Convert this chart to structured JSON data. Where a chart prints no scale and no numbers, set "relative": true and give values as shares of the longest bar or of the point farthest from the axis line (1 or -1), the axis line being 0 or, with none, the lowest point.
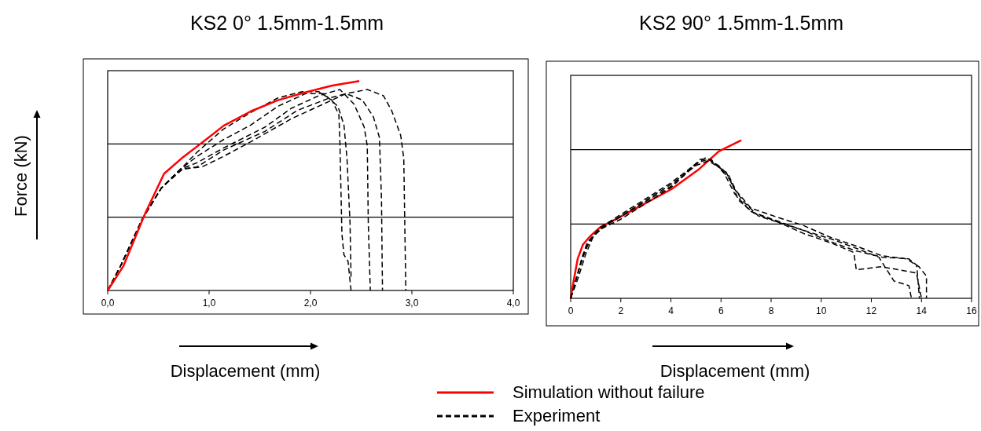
{
  "chart_data": [
    {
      "type": "line",
      "title": "KS2 0° 1.5mm-1.5mm",
      "xlabel": "Displacement (mm)",
      "ylabel": "Force (kN)",
      "relative": true,
      "legend": false,
      "line_style": "dashed",
      "ref_lines": [
        {
          "axis": "y",
          "value": 0.35
        },
        {
          "axis": "y",
          "value": 0.7
        }
      ],
      "xlim": [
        0,
        4
      ],
      "xticks": [
        {
          "value": 0,
          "label": "0,0"
        },
        {
          "value": 1,
          "label": "1,0"
        },
        {
          "value": 2,
          "label": "2,0"
        },
        {
          "value": 3,
          "label": "3,0"
        },
        {
          "value": 4,
          "label": "4,0"
        }
      ],
      "series": [
        {
          "color": "#000000",
          "x": [
            0,
            0.13,
            0.34,
            0.53,
            0.72,
            0.88,
            1.14,
            1.41,
            1.68,
            1.92,
            2.08,
            2.21,
            2.28,
            2.29,
            2.31,
            2.33,
            2.37,
            2.4
          ],
          "values": [
            0,
            0.12,
            0.34,
            0.49,
            0.58,
            0.66,
            0.77,
            0.85,
            0.92,
            0.95,
            0.95,
            0.91,
            0.84,
            0.71,
            0.27,
            0.17,
            0.14,
            0
          ]
        },
        {
          "color": "#000000",
          "x": [
            0,
            0.13,
            0.34,
            0.53,
            0.72,
            0.88,
            1.14,
            1.41,
            1.68,
            1.95,
            2.13,
            2.27,
            2.33,
            2.36,
            2.39,
            2.4
          ],
          "values": [
            0,
            0.12,
            0.34,
            0.49,
            0.58,
            0.64,
            0.72,
            0.79,
            0.88,
            0.94,
            0.94,
            0.88,
            0.79,
            0.63,
            0.32,
            0.06
          ]
        },
        {
          "color": "#000000",
          "x": [
            0,
            0.13,
            0.34,
            0.53,
            0.72,
            0.88,
            1.14,
            1.55,
            1.81,
            2.08,
            2.29,
            2.43,
            2.53,
            2.56,
            2.57,
            2.59
          ],
          "values": [
            0,
            0.12,
            0.34,
            0.49,
            0.58,
            0.61,
            0.68,
            0.78,
            0.87,
            0.93,
            0.96,
            0.89,
            0.78,
            0.69,
            0.32,
            0
          ]
        },
        {
          "color": "#000000",
          "x": [
            0,
            0.13,
            0.34,
            0.53,
            0.72,
            0.88,
            1.14,
            1.55,
            1.87,
            2.19,
            2.35,
            2.51,
            2.62,
            2.68,
            2.7,
            2.71
          ],
          "values": [
            0,
            0.12,
            0.34,
            0.49,
            0.58,
            0.59,
            0.67,
            0.76,
            0.86,
            0.92,
            0.94,
            0.91,
            0.83,
            0.73,
            0.44,
            0
          ]
        },
        {
          "color": "#000000",
          "x": [
            0,
            0.13,
            0.34,
            0.53,
            0.74,
            0.93,
            1.14,
            1.41,
            1.81,
            2.08,
            2.35,
            2.56,
            2.72,
            2.8,
            2.89,
            2.92,
            2.94
          ],
          "values": [
            0,
            0.12,
            0.34,
            0.49,
            0.58,
            0.59,
            0.64,
            0.71,
            0.82,
            0.88,
            0.94,
            0.96,
            0.93,
            0.86,
            0.74,
            0.63,
            0
          ]
        },
        {
          "color": "#ff0000",
          "line_style": "solid",
          "x": [
            0,
            0.155,
            0.369,
            0.556,
            0.743,
            0.93,
            1.144,
            1.412,
            1.679,
            1.947,
            2.214,
            2.481
          ],
          "values": [
            0,
            0.117,
            0.367,
            0.558,
            0.637,
            0.706,
            0.787,
            0.856,
            0.909,
            0.946,
            0.979,
            1.0
          ]
        }
      ]
    },
    {
      "type": "line",
      "title": "KS2 90° 1.5mm-1.5mm",
      "xlabel": "Displacement (mm)",
      "relative": true,
      "legend": "bottom",
      "line_style": "dashed",
      "ref_lines": [
        {
          "axis": "y",
          "value": 0.47
        },
        {
          "axis": "y",
          "value": 0.94
        }
      ],
      "xlim": [
        0,
        16
      ],
      "xticks": [
        0,
        2,
        4,
        6,
        8,
        10,
        12,
        14,
        16
      ],
      "series": [
        {
          "name": "Simulation without failure",
          "color": "#ff0000",
          "line_style": "solid",
          "x": [
            0,
            0.13,
            0.28,
            0.49,
            0.76,
            1.18,
            1.92,
            2.97,
            4.02,
            5.07,
            5.92,
            6.81
          ],
          "values": [
            0,
            0.12,
            0.25,
            0.34,
            0.39,
            0.45,
            0.51,
            0.6,
            0.69,
            0.81,
            0.93,
            1.0
          ]
        },
        {
          "name": "Experiment",
          "color": "#000000",
          "x": [
            0,
            0.23,
            0.44,
            0.65,
            1.07,
            1.92,
            2.97,
            4.02,
            5.18,
            5.6,
            6.13,
            6.55,
            7.18,
            8.23,
            9.28,
            10.34,
            11.39,
            12.44,
            13.49,
            13.81,
            13.92
          ],
          "values": [
            0,
            0.13,
            0.25,
            0.35,
            0.43,
            0.51,
            0.61,
            0.71,
            0.88,
            0.88,
            0.79,
            0.66,
            0.55,
            0.49,
            0.43,
            0.36,
            0.3,
            0.26,
            0.25,
            0.21,
            0
          ]
        },
        {
          "color": "#000000",
          "x": [
            0,
            0.25,
            0.5,
            0.8,
            1.2,
            2.0,
            3.0,
            4.0,
            5.0,
            5.4,
            5.9,
            6.3,
            6.6,
            7.2,
            8.3,
            9.3,
            10.3,
            11.4,
            12.4,
            13.4,
            13.9,
            14.2,
            14.2
          ],
          "values": [
            0,
            0.14,
            0.28,
            0.37,
            0.45,
            0.53,
            0.63,
            0.73,
            0.85,
            0.89,
            0.84,
            0.78,
            0.68,
            0.57,
            0.51,
            0.46,
            0.39,
            0.33,
            0.27,
            0.25,
            0.2,
            0.14,
            0
          ]
        },
        {
          "color": "#000000",
          "x": [
            0,
            0.2,
            0.45,
            0.7,
            1.1,
            2.0,
            3.0,
            4.0,
            5.1,
            5.5,
            6.0,
            6.4,
            6.7,
            7.3,
            8.3,
            9.3,
            10.4,
            11.3,
            11.4,
            12.4,
            13.8,
            14.0
          ],
          "values": [
            0,
            0.11,
            0.24,
            0.35,
            0.43,
            0.5,
            0.6,
            0.7,
            0.86,
            0.88,
            0.82,
            0.74,
            0.62,
            0.54,
            0.48,
            0.41,
            0.35,
            0.29,
            0.18,
            0.2,
            0.16,
            0
          ]
        },
        {
          "color": "#000000",
          "x": [
            0,
            0.3,
            0.6,
            0.9,
            1.3,
            2.0,
            3.0,
            4.0,
            5.0,
            5.5,
            6.2,
            6.5,
            6.9,
            7.5,
            8.5,
            9.5,
            10.5,
            11.5,
            12.3,
            12.9,
            13.5,
            13.6
          ],
          "values": [
            0,
            0.13,
            0.28,
            0.39,
            0.45,
            0.52,
            0.62,
            0.72,
            0.84,
            0.87,
            0.8,
            0.7,
            0.61,
            0.52,
            0.47,
            0.42,
            0.37,
            0.31,
            0.26,
            0.11,
            0.08,
            0
          ]
        }
      ]
    }
  ]
}
